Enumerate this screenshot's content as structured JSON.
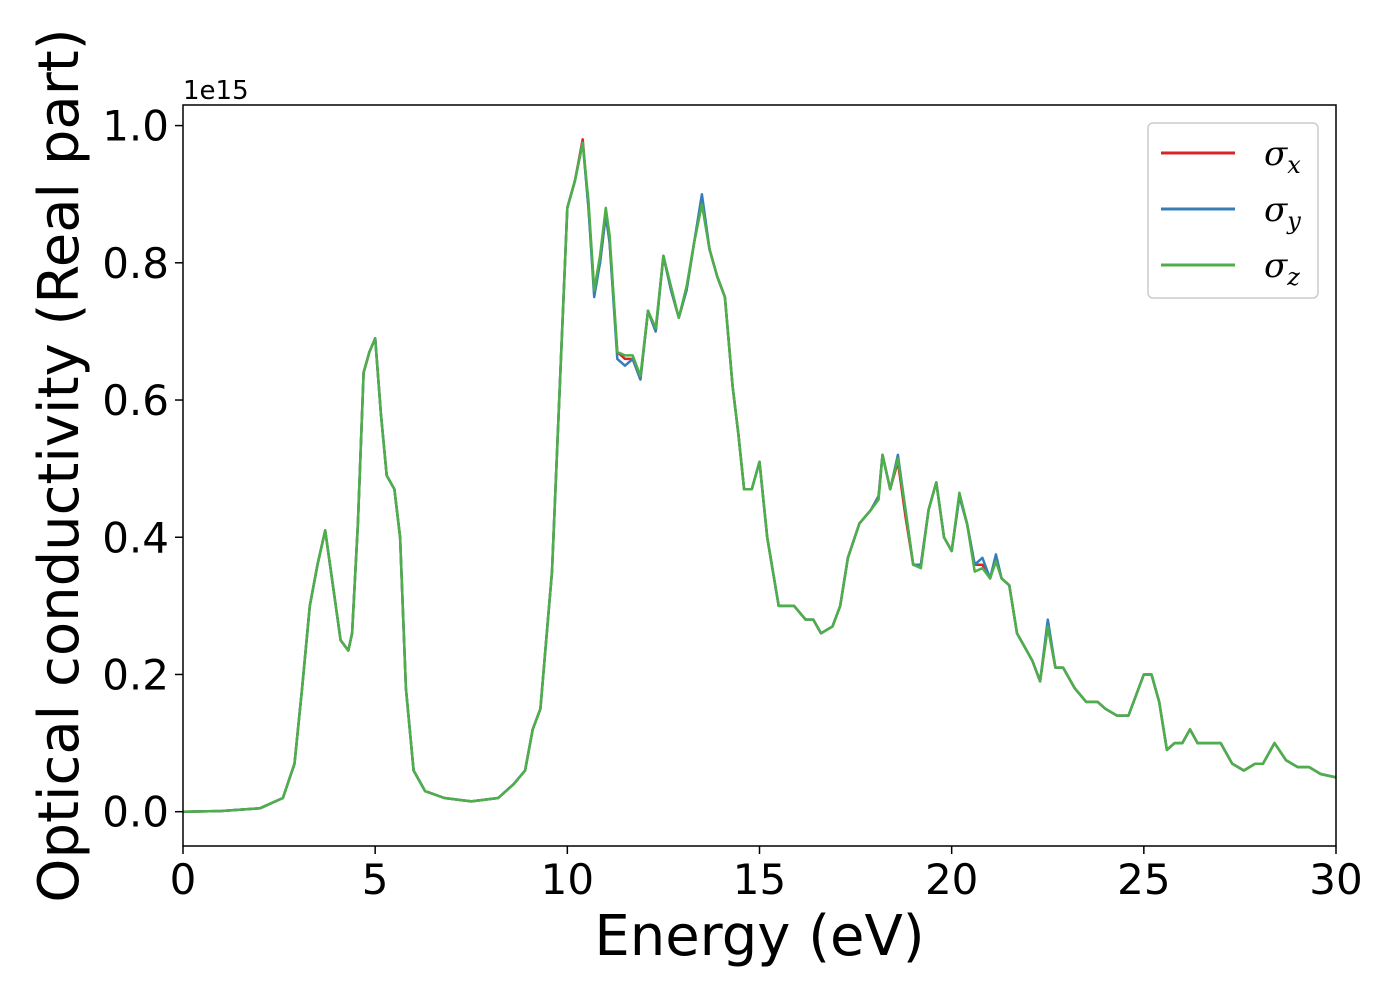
{
  "chart_data": {
    "type": "line",
    "xlabel": "Energy (eV)",
    "ylabel": "Optical conductivity (Real part)",
    "y_offset_text": "1e15",
    "xlim": [
      0,
      30
    ],
    "ylim": [
      -0.05,
      1.03
    ],
    "y_scale_factor": 1000000000000000.0,
    "grid": false,
    "legend_position": "top-right",
    "x_ticks": [
      0,
      5,
      10,
      15,
      20,
      25,
      30
    ],
    "x_tick_labels": [
      "0",
      "5",
      "10",
      "15",
      "20",
      "25",
      "30"
    ],
    "y_ticks": [
      0.0,
      0.2,
      0.4,
      0.6,
      0.8,
      1.0
    ],
    "y_tick_labels": [
      "0.0",
      "0.2",
      "0.4",
      "0.6",
      "0.8",
      "1.0"
    ],
    "x": [
      0,
      1,
      2,
      2.6,
      2.9,
      3.1,
      3.3,
      3.5,
      3.7,
      3.9,
      4.1,
      4.3,
      4.4,
      4.55,
      4.7,
      4.85,
      5.0,
      5.15,
      5.3,
      5.5,
      5.65,
      5.8,
      6.0,
      6.3,
      6.8,
      7.5,
      8.2,
      8.6,
      8.9,
      9.1,
      9.3,
      9.6,
      10.0,
      10.2,
      10.4,
      10.55,
      10.7,
      10.85,
      11.0,
      11.1,
      11.3,
      11.5,
      11.7,
      11.9,
      12.1,
      12.3,
      12.5,
      12.7,
      12.9,
      13.1,
      13.3,
      13.5,
      13.7,
      13.9,
      14.1,
      14.3,
      14.45,
      14.6,
      14.8,
      15.0,
      15.2,
      15.5,
      15.9,
      16.2,
      16.4,
      16.6,
      16.9,
      17.1,
      17.3,
      17.6,
      17.9,
      18.1,
      18.2,
      18.4,
      18.6,
      18.8,
      19.0,
      19.2,
      19.4,
      19.6,
      19.8,
      20.0,
      20.2,
      20.4,
      20.6,
      20.8,
      21.0,
      21.15,
      21.3,
      21.5,
      21.7,
      21.9,
      22.1,
      22.3,
      22.5,
      22.7,
      22.9,
      23.2,
      23.5,
      23.8,
      24.0,
      24.3,
      24.6,
      25.0,
      25.2,
      25.4,
      25.6,
      25.8,
      26.0,
      26.2,
      26.4,
      26.7,
      27.0,
      27.3,
      27.6,
      27.9,
      28.1,
      28.4,
      28.7,
      29.0,
      29.3,
      29.6,
      30.0
    ],
    "series": [
      {
        "name": "σx",
        "color": "#d62728",
        "values": [
          0.0,
          0.001,
          0.005,
          0.02,
          0.07,
          0.18,
          0.3,
          0.36,
          0.41,
          0.33,
          0.25,
          0.235,
          0.26,
          0.42,
          0.64,
          0.67,
          0.69,
          0.58,
          0.49,
          0.47,
          0.4,
          0.18,
          0.06,
          0.03,
          0.02,
          0.015,
          0.02,
          0.04,
          0.06,
          0.12,
          0.15,
          0.35,
          0.88,
          0.92,
          0.98,
          0.88,
          0.76,
          0.8,
          0.87,
          0.83,
          0.67,
          0.66,
          0.66,
          0.63,
          0.73,
          0.7,
          0.81,
          0.76,
          0.72,
          0.76,
          0.83,
          0.89,
          0.82,
          0.78,
          0.75,
          0.62,
          0.55,
          0.47,
          0.47,
          0.51,
          0.4,
          0.3,
          0.3,
          0.28,
          0.28,
          0.26,
          0.27,
          0.3,
          0.37,
          0.42,
          0.44,
          0.46,
          0.52,
          0.47,
          0.51,
          0.43,
          0.36,
          0.36,
          0.44,
          0.48,
          0.4,
          0.38,
          0.46,
          0.42,
          0.36,
          0.36,
          0.34,
          0.37,
          0.34,
          0.33,
          0.26,
          0.24,
          0.22,
          0.19,
          0.27,
          0.21,
          0.21,
          0.18,
          0.16,
          0.16,
          0.15,
          0.14,
          0.14,
          0.2,
          0.2,
          0.16,
          0.09,
          0.1,
          0.1,
          0.12,
          0.1,
          0.1,
          0.1,
          0.07,
          0.06,
          0.07,
          0.07,
          0.1,
          0.075,
          0.065,
          0.065,
          0.055,
          0.05
        ]
      },
      {
        "name": "σy",
        "color": "#377eb8",
        "values": [
          0.0,
          0.001,
          0.005,
          0.02,
          0.07,
          0.18,
          0.3,
          0.36,
          0.41,
          0.33,
          0.25,
          0.235,
          0.26,
          0.42,
          0.64,
          0.67,
          0.69,
          0.58,
          0.49,
          0.47,
          0.4,
          0.18,
          0.06,
          0.03,
          0.02,
          0.015,
          0.02,
          0.04,
          0.06,
          0.12,
          0.15,
          0.35,
          0.88,
          0.92,
          0.975,
          0.88,
          0.75,
          0.8,
          0.87,
          0.83,
          0.66,
          0.65,
          0.66,
          0.63,
          0.73,
          0.7,
          0.81,
          0.76,
          0.72,
          0.76,
          0.83,
          0.9,
          0.82,
          0.78,
          0.75,
          0.62,
          0.55,
          0.47,
          0.47,
          0.51,
          0.4,
          0.3,
          0.3,
          0.28,
          0.28,
          0.26,
          0.27,
          0.3,
          0.37,
          0.42,
          0.44,
          0.46,
          0.52,
          0.47,
          0.52,
          0.44,
          0.36,
          0.36,
          0.44,
          0.48,
          0.4,
          0.38,
          0.46,
          0.42,
          0.36,
          0.37,
          0.34,
          0.375,
          0.34,
          0.33,
          0.26,
          0.24,
          0.22,
          0.19,
          0.28,
          0.21,
          0.21,
          0.18,
          0.16,
          0.16,
          0.15,
          0.14,
          0.14,
          0.2,
          0.2,
          0.16,
          0.09,
          0.1,
          0.1,
          0.12,
          0.1,
          0.1,
          0.1,
          0.07,
          0.06,
          0.07,
          0.07,
          0.1,
          0.075,
          0.065,
          0.065,
          0.055,
          0.05
        ]
      },
      {
        "name": "σz",
        "color": "#4daf4a",
        "values": [
          0.0,
          0.001,
          0.005,
          0.02,
          0.07,
          0.18,
          0.3,
          0.36,
          0.41,
          0.33,
          0.25,
          0.235,
          0.26,
          0.42,
          0.64,
          0.67,
          0.69,
          0.58,
          0.49,
          0.47,
          0.4,
          0.18,
          0.06,
          0.03,
          0.02,
          0.015,
          0.02,
          0.04,
          0.06,
          0.12,
          0.15,
          0.35,
          0.88,
          0.92,
          0.975,
          0.89,
          0.76,
          0.81,
          0.88,
          0.84,
          0.67,
          0.665,
          0.665,
          0.635,
          0.73,
          0.705,
          0.81,
          0.765,
          0.72,
          0.765,
          0.83,
          0.885,
          0.82,
          0.78,
          0.75,
          0.62,
          0.55,
          0.47,
          0.47,
          0.51,
          0.4,
          0.3,
          0.3,
          0.28,
          0.28,
          0.26,
          0.27,
          0.3,
          0.37,
          0.42,
          0.44,
          0.455,
          0.52,
          0.47,
          0.515,
          0.44,
          0.36,
          0.355,
          0.44,
          0.48,
          0.4,
          0.38,
          0.465,
          0.42,
          0.35,
          0.355,
          0.34,
          0.365,
          0.34,
          0.33,
          0.26,
          0.24,
          0.22,
          0.19,
          0.27,
          0.21,
          0.21,
          0.18,
          0.16,
          0.16,
          0.15,
          0.14,
          0.14,
          0.2,
          0.2,
          0.16,
          0.09,
          0.1,
          0.1,
          0.12,
          0.1,
          0.1,
          0.1,
          0.07,
          0.06,
          0.07,
          0.07,
          0.1,
          0.075,
          0.065,
          0.065,
          0.055,
          0.05
        ]
      }
    ],
    "legend": [
      {
        "symbol": "σ",
        "subscript": "x",
        "color": "#d62728"
      },
      {
        "symbol": "σ",
        "subscript": "y",
        "color": "#377eb8"
      },
      {
        "symbol": "σ",
        "subscript": "z",
        "color": "#4daf4a"
      }
    ]
  }
}
